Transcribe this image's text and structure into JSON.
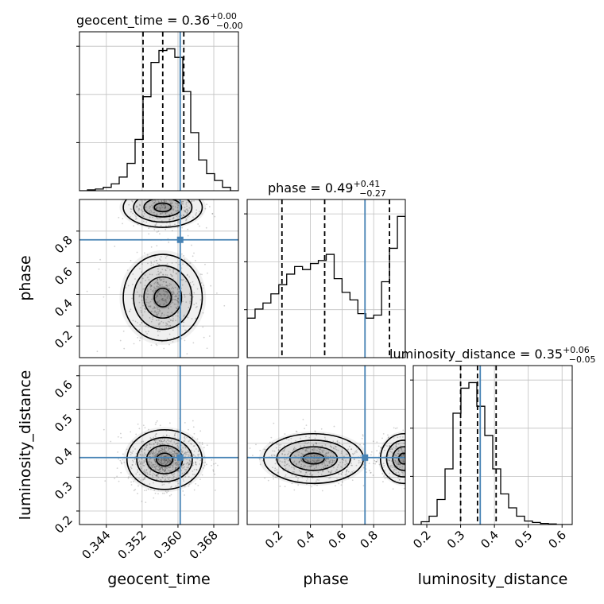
{
  "chart_data": {
    "type": "corner",
    "parameters": [
      "geocent_time",
      "phase",
      "luminosity_distance"
    ],
    "truths": {
      "geocent_time": 0.3605,
      "phase": 0.745,
      "luminosity_distance": 0.358
    },
    "ranges": {
      "geocent_time": [
        0.338,
        0.3735
      ],
      "phase": [
        0.0,
        1.0
      ],
      "luminosity_distance": [
        0.16,
        0.63
      ]
    },
    "titles": [
      {
        "param": "geocent_time",
        "prefix": "geocent_time = 0.36",
        "upper": "+0.00",
        "lower": "−0.00"
      },
      {
        "param": "phase",
        "prefix": "phase = 0.49",
        "upper": "+0.41",
        "lower": "−0.27"
      },
      {
        "param": "luminosity_distance",
        "prefix": "luminosity_distance = 0.35",
        "upper": "+0.06",
        "lower": "−0.05"
      }
    ],
    "quantiles": {
      "geocent_time": [
        0.3522,
        0.3566,
        0.3613
      ],
      "phase": [
        0.22,
        0.49,
        0.9
      ],
      "luminosity_distance": [
        0.3,
        0.35,
        0.405
      ]
    },
    "histograms": {
      "geocent_time": {
        "range": [
          0.338,
          0.3735
        ],
        "counts": [
          0.0,
          0.005,
          0.01,
          0.02,
          0.04,
          0.08,
          0.16,
          0.3,
          0.55,
          0.75,
          0.82,
          0.83,
          0.78,
          0.58,
          0.34,
          0.18,
          0.1,
          0.06,
          0.02,
          0.0
        ]
      },
      "phase": {
        "range": [
          0.0,
          1.0
        ],
        "counts": [
          0.26,
          0.32,
          0.36,
          0.42,
          0.48,
          0.55,
          0.6,
          0.58,
          0.62,
          0.64,
          0.68,
          0.52,
          0.43,
          0.38,
          0.29,
          0.26,
          0.28,
          0.5,
          0.72,
          0.93
        ]
      },
      "luminosity_distance": {
        "range": [
          0.16,
          0.63
        ],
        "counts": [
          0.0,
          0.02,
          0.06,
          0.18,
          0.4,
          0.8,
          0.98,
          1.02,
          0.85,
          0.64,
          0.4,
          0.22,
          0.12,
          0.06,
          0.025,
          0.015,
          0.008,
          0.004,
          0.0,
          0.0
        ]
      }
    },
    "contour_levels": [
      0.2,
      0.4,
      0.6,
      0.8
    ],
    "ticks": {
      "geocent_time": [
        0.344,
        0.352,
        0.36,
        0.368
      ],
      "phase": [
        0.2,
        0.4,
        0.6,
        0.8
      ],
      "luminosity_distance": [
        0.2,
        0.3,
        0.4,
        0.5,
        0.6
      ]
    },
    "tick_labels": {
      "geocent_time": [
        "0.344",
        "0.352",
        "0.360",
        "0.368"
      ],
      "phase": [
        "0.2",
        "0.4",
        "0.6",
        "0.8"
      ],
      "luminosity_distance": [
        "0.2",
        "0.3",
        "0.4",
        "0.5",
        "0.6"
      ]
    },
    "axis_labels": {
      "x": [
        "geocent_time",
        "phase",
        "luminosity_distance"
      ],
      "y": [
        "phase",
        "luminosity_distance"
      ]
    },
    "grid": true,
    "colors": {
      "truth": "#4682b4",
      "hist": "#000000",
      "quantile": "#000000",
      "density": "#000000",
      "grid": "#c0c0c0"
    }
  }
}
